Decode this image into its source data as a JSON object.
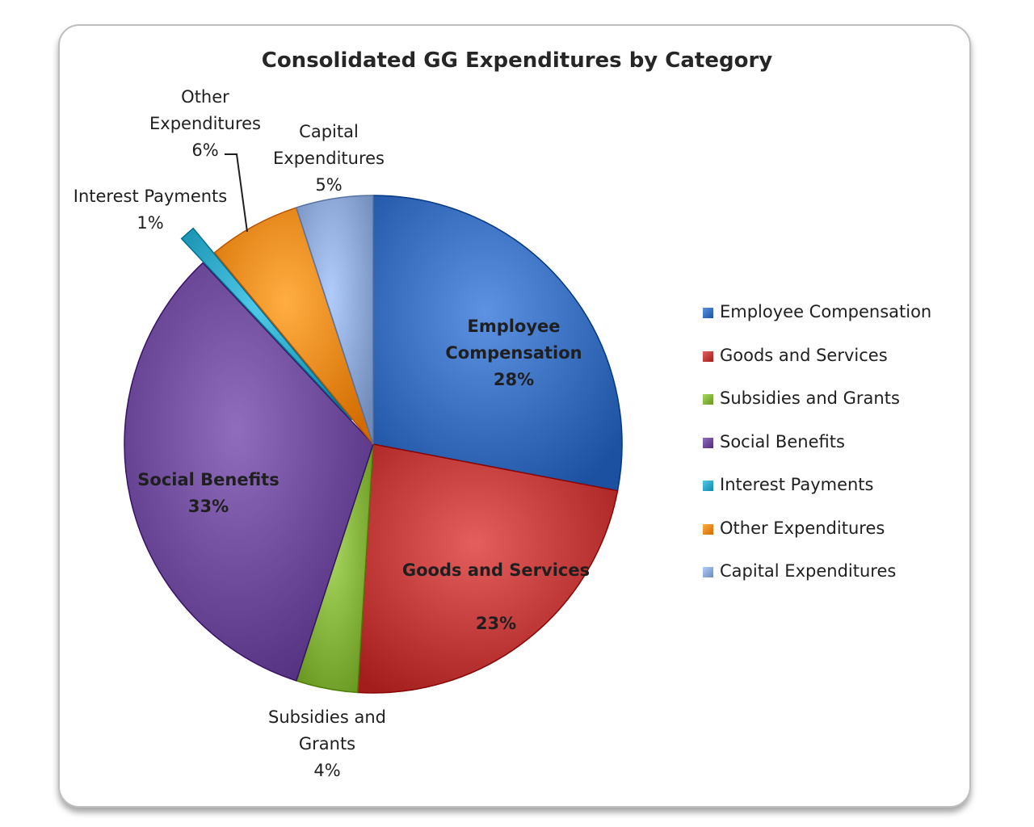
{
  "chart_data": {
    "type": "pie",
    "title": "Consolidated GG Expenditures by Category",
    "categories": [
      "Employee Compensation",
      "Goods and Services",
      "Subsidies and Grants",
      "Social Benefits",
      "Interest Payments",
      "Other Expenditures",
      "Capital Expenditures"
    ],
    "values": [
      28,
      23,
      4,
      33,
      1,
      6,
      5
    ],
    "data_labels": [
      "28%",
      "23%",
      "4%",
      "33%",
      "1%",
      "6%",
      "5%"
    ],
    "colors": [
      "#3a6fbf",
      "#c23b3b",
      "#86b53e",
      "#6e4a9b",
      "#2ea7c6",
      "#f08a1e",
      "#8ea9d8"
    ],
    "legend": "right",
    "exploded": [
      "Interest Payments"
    ]
  }
}
